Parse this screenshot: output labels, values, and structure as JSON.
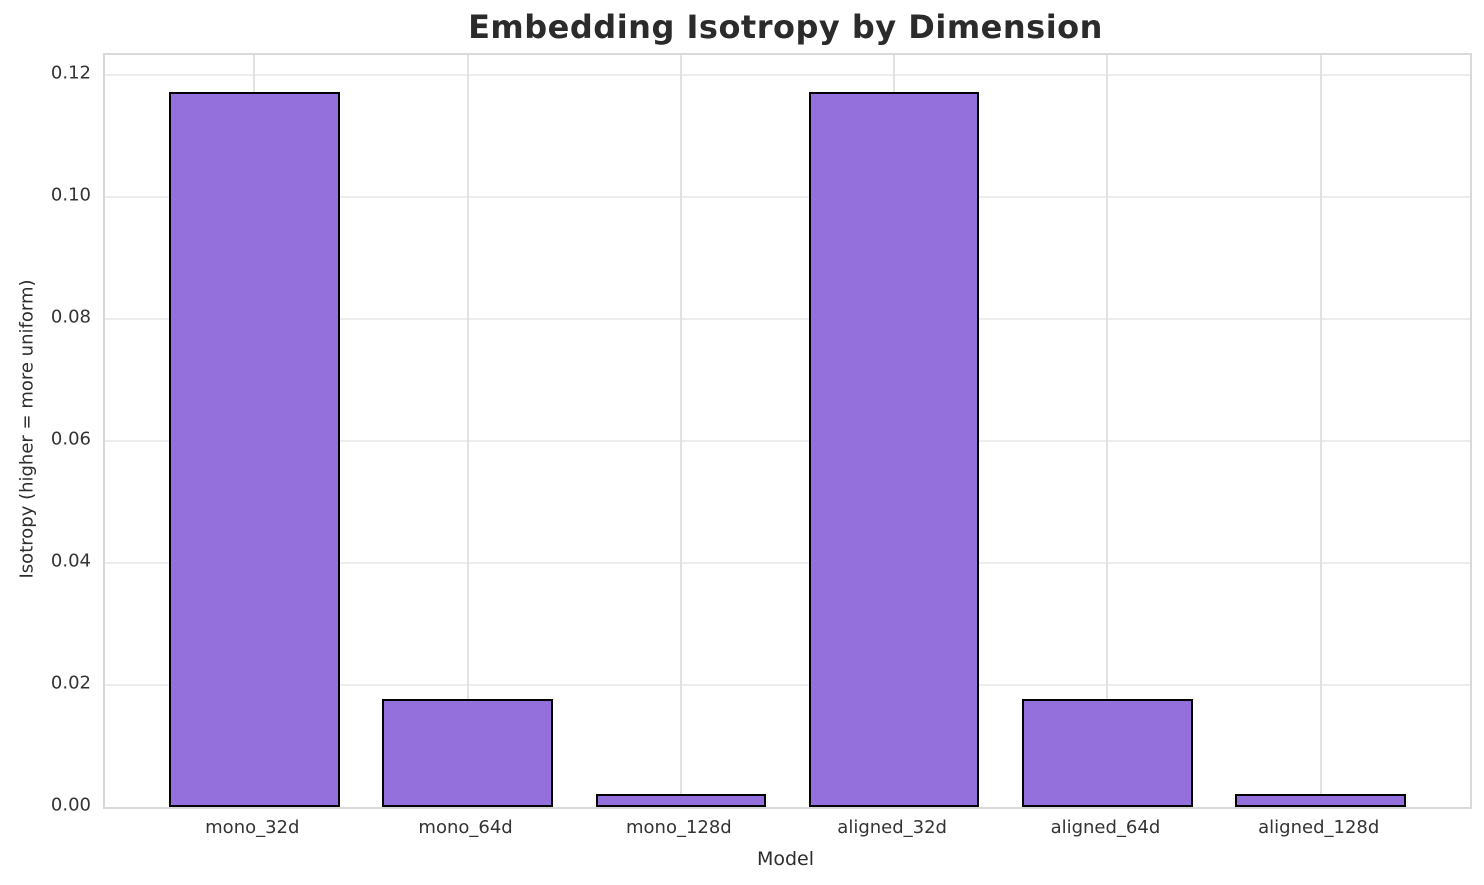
{
  "chart_data": {
    "type": "bar",
    "title": "Embedding Isotropy by Dimension",
    "xlabel": "Model",
    "ylabel": "Isotropy (higher = more uniform)",
    "categories": [
      "mono_32d",
      "mono_64d",
      "mono_128d",
      "aligned_32d",
      "aligned_64d",
      "aligned_128d"
    ],
    "values": [
      0.1173,
      0.0177,
      0.0021,
      0.1173,
      0.0177,
      0.0021
    ],
    "ylim": [
      0,
      0.1233
    ],
    "yticks": [
      0.0,
      0.02,
      0.04,
      0.06,
      0.08,
      0.1,
      0.12
    ],
    "ytick_format_decimals": 2,
    "grid": true,
    "legend": "none",
    "bar_color": "#9370db",
    "bar_edge_color": "#000000",
    "text_color": "#2d2d2d",
    "grid_color": "#ededed",
    "spine_color": "#d9d9d9",
    "background": "#ffffff"
  }
}
